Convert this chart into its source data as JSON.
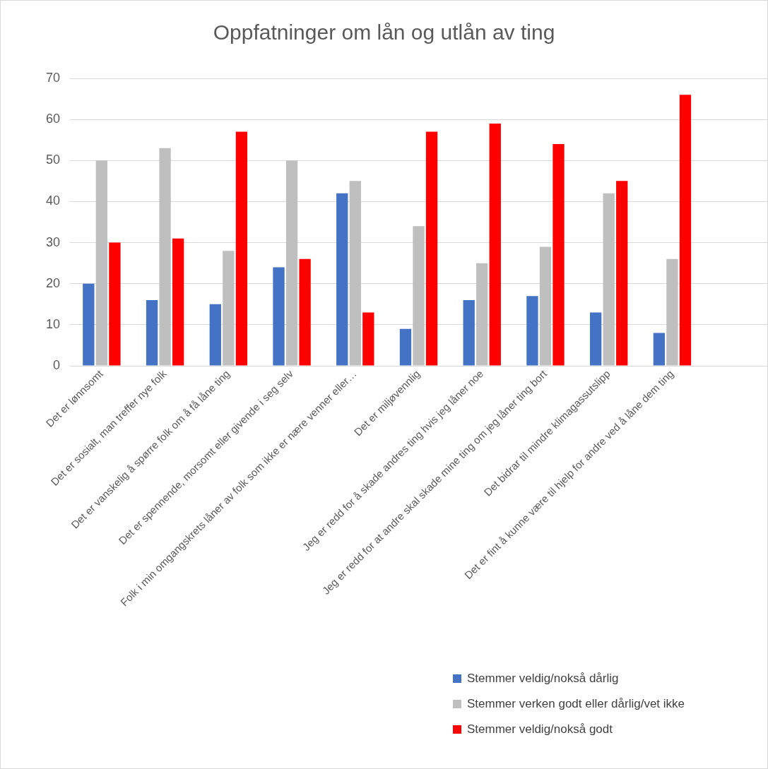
{
  "chart_data": {
    "type": "bar",
    "title": "Oppfatninger om lån og utlån av ting",
    "categories": [
      "Det er lønnsomt",
      "Det er sosialt, man treffer nye folk",
      "Det er vanskelig å spørre folk om å få låne ting",
      "Det er spennende, morsomt eller givende i seg selv",
      "Folk i min omgangskrets låner av folk som ikke er nære venner eller…",
      "Det er miljøvennlig",
      "Jeg er redd for å skade andres ting hvis jeg låner noe",
      "Jeg er redd for at andre skal skade mine ting om jeg låner ting bort",
      "Det bidrar til mindre klimagassutslipp",
      "Det er fint å kunne være til hjelp for andre ved å låne dem ting",
      null
    ],
    "series": [
      {
        "name": "Stemmer veldig/nokså dårlig",
        "color": "#4472c4",
        "values": [
          20,
          16,
          15,
          24,
          42,
          9,
          16,
          17,
          13,
          8,
          null
        ]
      },
      {
        "name": "Stemmer verken godt eller dårlig/vet ikke",
        "color": "#bfbfbf",
        "values": [
          50,
          53,
          28,
          50,
          45,
          34,
          25,
          29,
          42,
          26,
          null
        ]
      },
      {
        "name": "Stemmer veldig/nokså godt",
        "color": "#ff0000",
        "values": [
          30,
          31,
          57,
          26,
          13,
          57,
          59,
          54,
          45,
          66,
          null
        ]
      }
    ],
    "ylim": [
      0,
      70
    ],
    "yticks": [
      0,
      10,
      20,
      30,
      40,
      50,
      60,
      70
    ],
    "grid": "y",
    "legend": "bottom right"
  }
}
